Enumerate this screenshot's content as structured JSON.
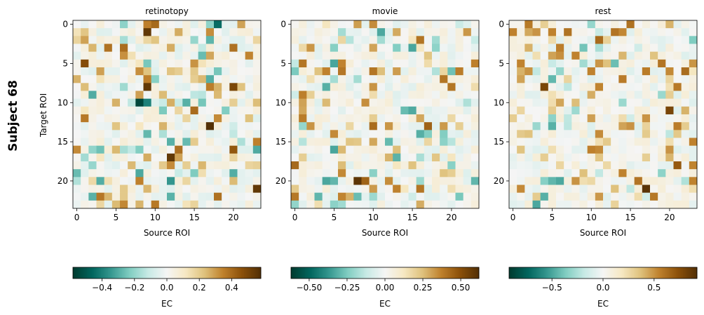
{
  "figure": {
    "row_label": "Subject 68"
  },
  "chart_data": [
    {
      "type": "heatmap",
      "title": "retinotopy",
      "xlabel": "Source ROI",
      "ylabel": "Target ROI",
      "size": 24,
      "xticks": [
        0,
        5,
        10,
        15,
        20
      ],
      "yticks": [
        0,
        5,
        10,
        15,
        20
      ],
      "colorbar": {
        "label": "EC",
        "vmin": -0.58,
        "vmax": 0.58,
        "ticks": [
          -0.4,
          -0.2,
          0.0,
          0.2,
          0.4
        ],
        "tick_labels": [
          "−0.4",
          "−0.2",
          "0.0",
          "0.2",
          "0.4"
        ]
      },
      "seed": 68,
      "highlights": [
        [
          0,
          18,
          -0.45
        ],
        [
          1,
          9,
          0.55
        ],
        [
          5,
          1,
          0.48
        ],
        [
          7,
          9,
          0.35
        ],
        [
          8,
          9,
          0.55
        ],
        [
          8,
          20,
          0.5
        ],
        [
          10,
          8,
          -0.55
        ],
        [
          10,
          9,
          -0.4
        ],
        [
          13,
          17,
          0.6
        ],
        [
          17,
          12,
          0.55
        ],
        [
          16,
          20,
          0.45
        ],
        [
          15,
          23,
          0.35
        ],
        [
          19,
          20,
          -0.3
        ],
        [
          20,
          8,
          0.35
        ],
        [
          20,
          12,
          -0.35
        ],
        [
          21,
          23,
          0.55
        ],
        [
          20,
          3,
          -0.3
        ]
      ]
    },
    {
      "type": "heatmap",
      "title": "movie",
      "xlabel": "Source ROI",
      "ylabel": "",
      "size": 24,
      "xticks": [
        0,
        5,
        10,
        15,
        20
      ],
      "yticks": [
        0,
        5,
        10,
        15,
        20
      ],
      "colorbar": {
        "label": "EC",
        "vmin": -0.62,
        "vmax": 0.62,
        "ticks": [
          -0.5,
          -0.25,
          0.0,
          0.25,
          0.5
        ],
        "tick_labels": [
          "−0.50",
          "−0.25",
          "0.00",
          "0.25",
          "0.50"
        ]
      },
      "seed": 168,
      "highlights": [
        [
          5,
          1,
          0.4
        ],
        [
          6,
          10,
          0.4
        ],
        [
          7,
          19,
          0.4
        ],
        [
          8,
          20,
          0.4
        ],
        [
          13,
          17,
          0.45
        ],
        [
          20,
          8,
          0.6
        ],
        [
          20,
          9,
          0.45
        ],
        [
          20,
          12,
          0.35
        ],
        [
          21,
          16,
          0.4
        ],
        [
          20,
          5,
          -0.3
        ],
        [
          20,
          23,
          -0.3
        ],
        [
          11,
          1,
          0.3
        ],
        [
          15,
          10,
          0.3
        ]
      ]
    },
    {
      "type": "heatmap",
      "title": "rest",
      "xlabel": "Source ROI",
      "ylabel": "",
      "size": 24,
      "xticks": [
        0,
        5,
        10,
        15,
        20
      ],
      "yticks": [
        0,
        5,
        10,
        15,
        20
      ],
      "colorbar": {
        "label": "EC",
        "vmin": -0.92,
        "vmax": 0.92,
        "ticks": [
          -0.5,
          0.0,
          0.5
        ],
        "tick_labels": [
          "−0.5",
          "0.0",
          "0.5"
        ]
      },
      "seed": 268,
      "highlights": [
        [
          1,
          3,
          0.5
        ],
        [
          1,
          5,
          0.55
        ],
        [
          1,
          13,
          0.6
        ],
        [
          4,
          8,
          0.55
        ],
        [
          6,
          10,
          0.55
        ],
        [
          8,
          4,
          0.8
        ],
        [
          10,
          6,
          0.45
        ],
        [
          11,
          20,
          0.8
        ],
        [
          18,
          21,
          0.7
        ],
        [
          19,
          14,
          0.55
        ],
        [
          20,
          8,
          0.5
        ],
        [
          20,
          16,
          0.6
        ],
        [
          21,
          17,
          0.9
        ],
        [
          20,
          23,
          0.55
        ],
        [
          16,
          20,
          0.5
        ],
        [
          13,
          15,
          0.5
        ],
        [
          9,
          19,
          -0.3
        ],
        [
          20,
          4,
          -0.35
        ]
      ]
    }
  ]
}
